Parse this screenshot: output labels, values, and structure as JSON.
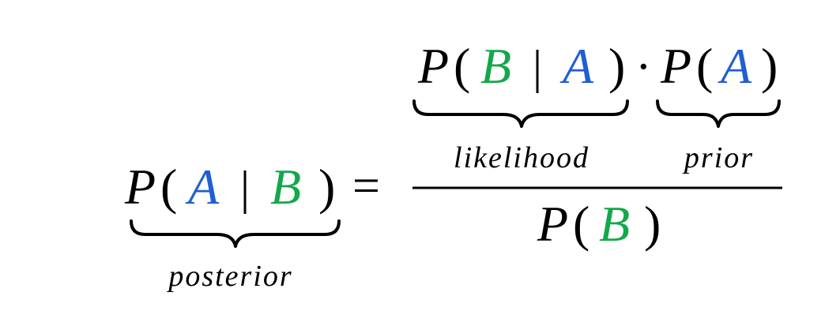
{
  "colors": {
    "A": "#1f5fd1",
    "B": "#13a84a",
    "text": "#000000"
  },
  "formula": {
    "lhs": {
      "func": "P",
      "open": "(",
      "var1": "A",
      "sep": "|",
      "var2": "B",
      "close": ")"
    },
    "equals": "=",
    "numerator": {
      "likelihood": {
        "func": "P",
        "open": "(",
        "var1": "B",
        "sep": "|",
        "var2": "A",
        "close": ")"
      },
      "dot": "·",
      "prior": {
        "func": "P",
        "open": "(",
        "var1": "A",
        "close": ")"
      }
    },
    "denominator": {
      "func": "P",
      "open": "(",
      "var1": "B",
      "close": ")"
    }
  },
  "labels": {
    "posterior": "posterior",
    "likelihood": "likelihood",
    "prior": "prior"
  }
}
